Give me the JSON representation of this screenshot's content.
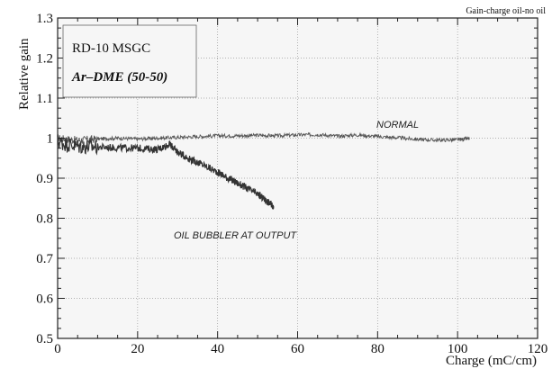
{
  "chart_data": {
    "type": "line",
    "corner_note": "Gain-charge oil-no oil",
    "box_lines": [
      "RD-10 MSGC",
      "Ar–DME (50-50)"
    ],
    "xlabel": "Charge (mC/cm)",
    "ylabel": "Relative gain",
    "xlim": [
      0,
      120
    ],
    "ylim": [
      0.5,
      1.3
    ],
    "x_ticks": [
      0,
      20,
      40,
      60,
      80,
      100,
      120
    ],
    "y_ticks": [
      0.5,
      0.6,
      0.7,
      0.8,
      0.9,
      1,
      1.1,
      1.2,
      1.3
    ],
    "grid": true,
    "series": [
      {
        "name": "NORMAL",
        "color": "#555555",
        "x": [
          0,
          5,
          10,
          15,
          20,
          25,
          30,
          35,
          40,
          45,
          50,
          55,
          60,
          65,
          70,
          75,
          80,
          85,
          90,
          95,
          100,
          103
        ],
        "y": [
          1.0,
          0.995,
          0.998,
          1.0,
          0.998,
          1.0,
          1.002,
          1.004,
          1.006,
          1.006,
          1.007,
          1.006,
          1.008,
          1.009,
          1.005,
          1.008,
          1.004,
          1.001,
          0.997,
          0.995,
          0.996,
          0.999
        ]
      },
      {
        "name": "OIL BUBBLER AT OUTPUT",
        "color": "#333333",
        "x": [
          0,
          5,
          10,
          15,
          20,
          25,
          28,
          30,
          33,
          36,
          40,
          43,
          46,
          50,
          52,
          54
        ],
        "y": [
          0.99,
          0.98,
          0.978,
          0.976,
          0.975,
          0.972,
          0.985,
          0.965,
          0.948,
          0.935,
          0.915,
          0.898,
          0.882,
          0.86,
          0.845,
          0.83
        ]
      }
    ],
    "annotations": [
      "NORMAL",
      "OIL BUBBLER AT OUTPUT"
    ]
  }
}
